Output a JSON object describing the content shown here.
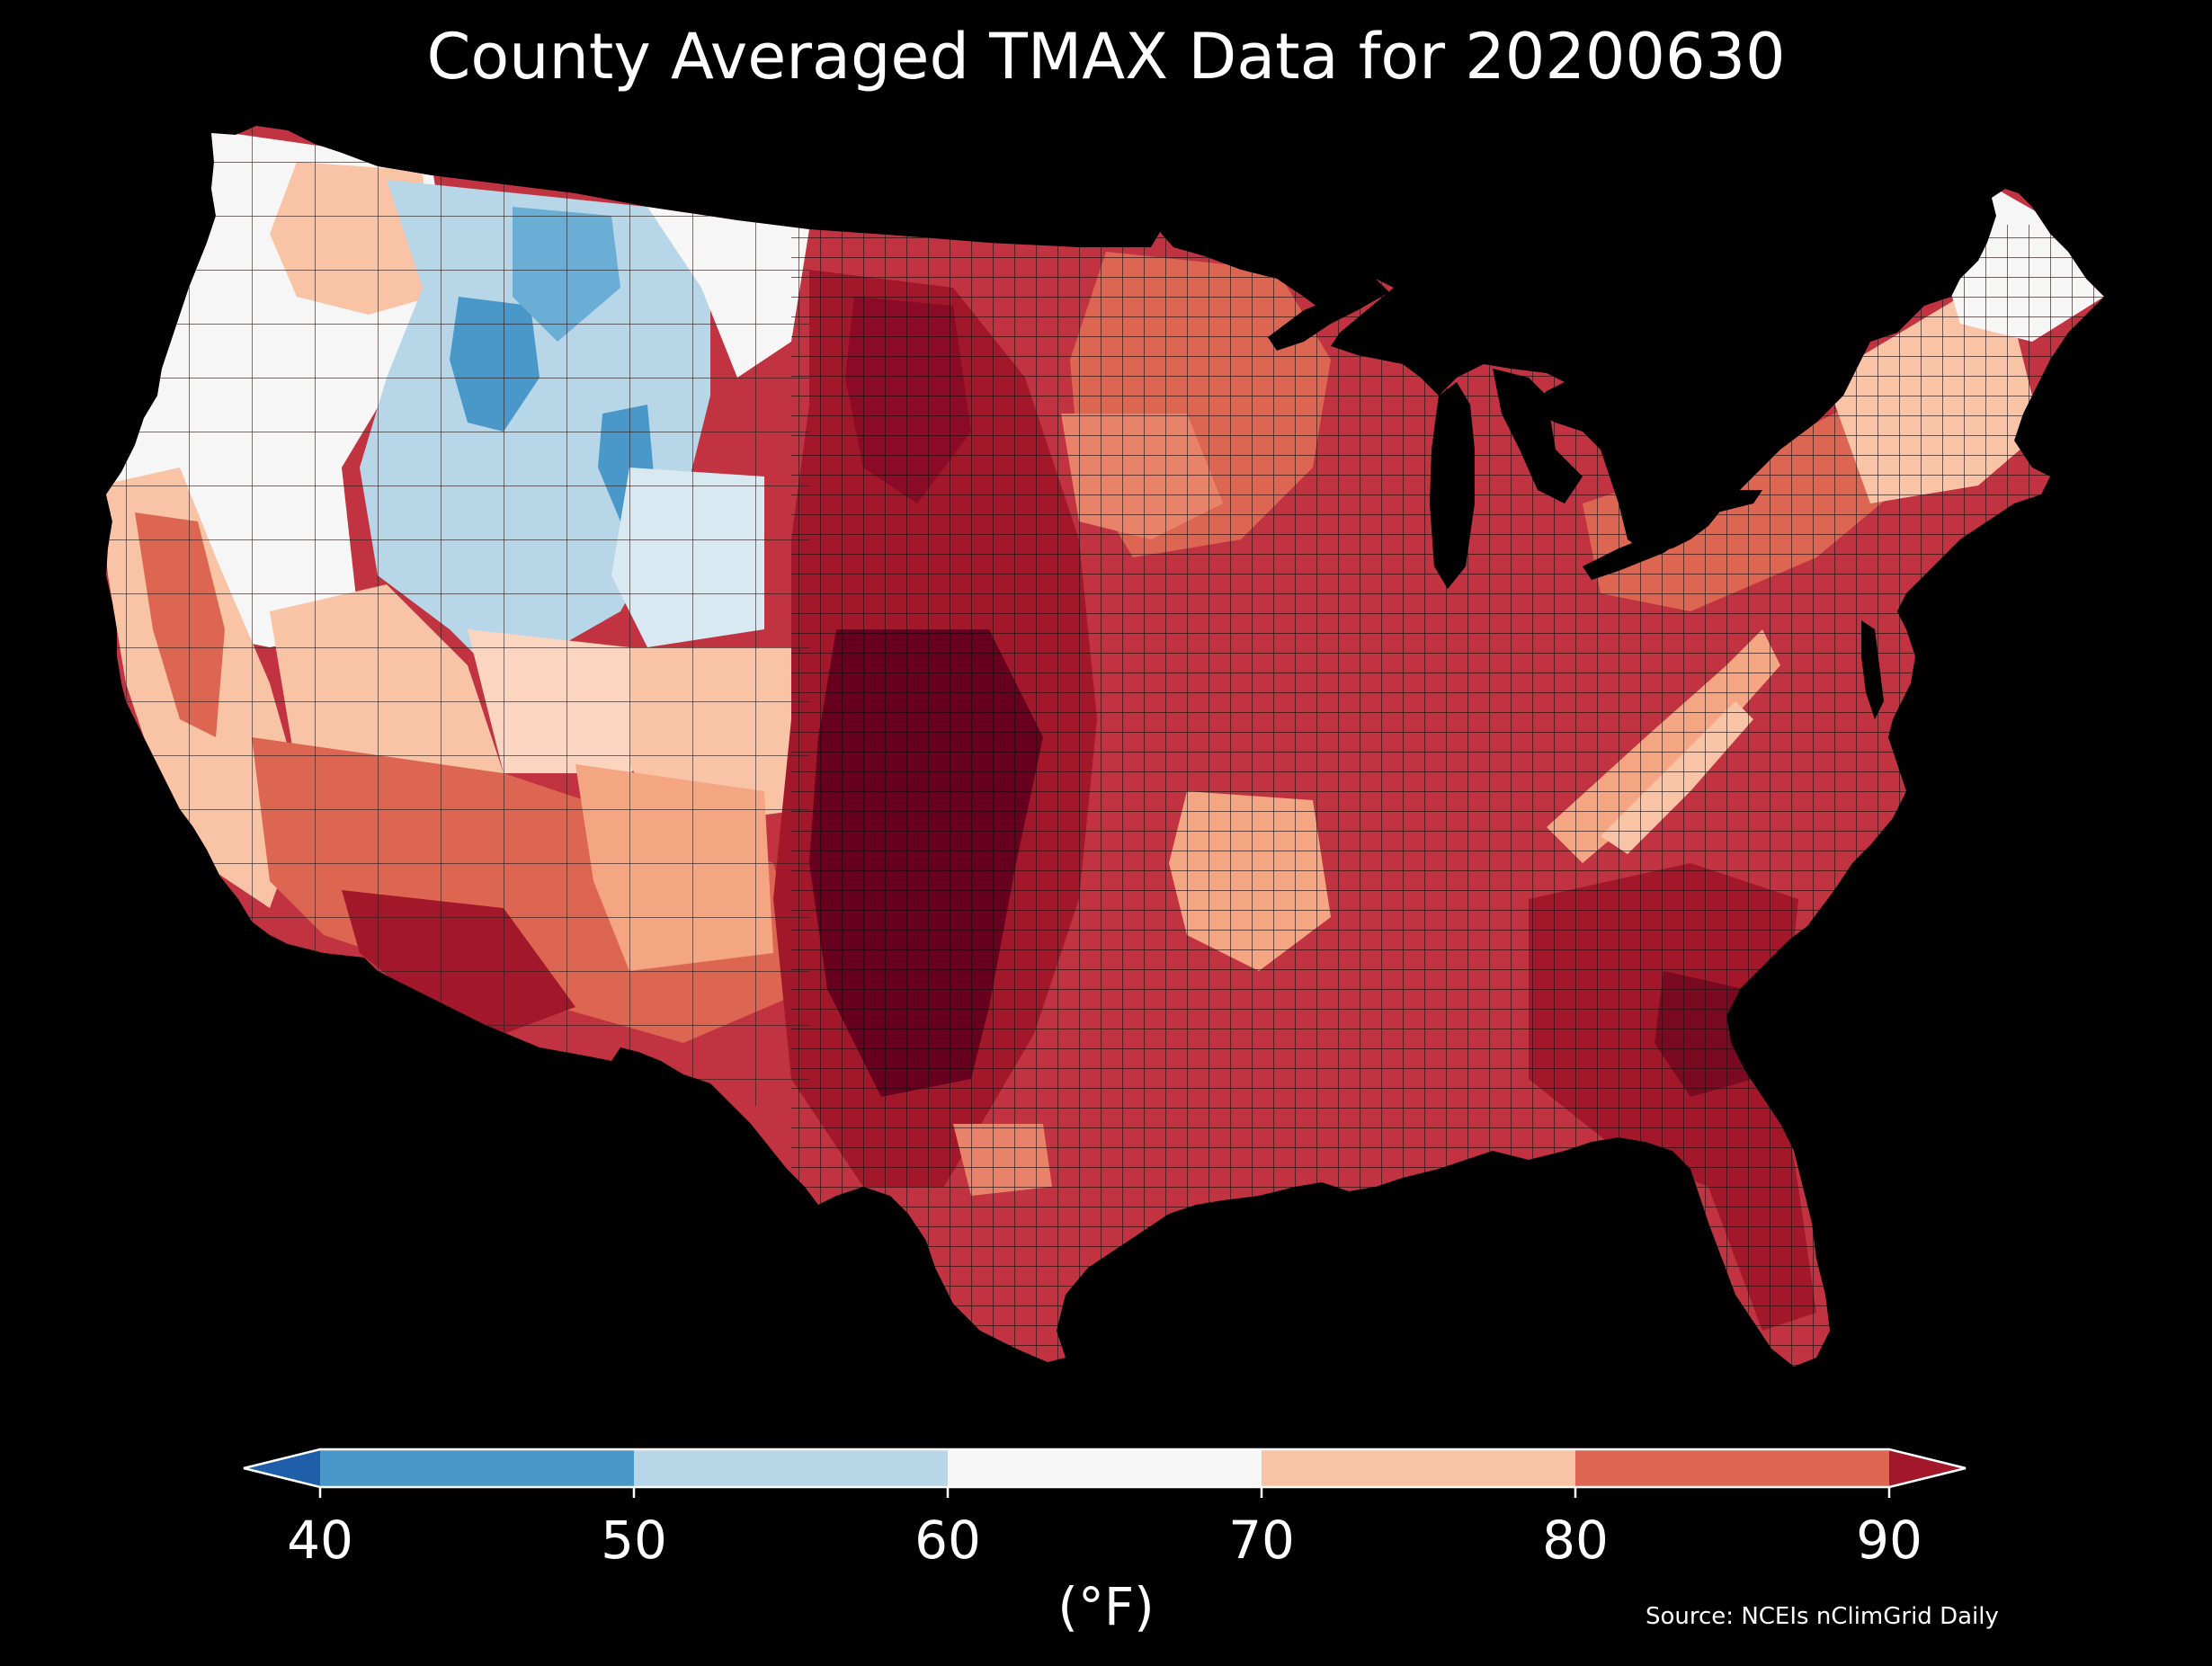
{
  "title": "County Averaged TMAX Data for 20200630",
  "source": "Source: NCEIs nClimGrid Daily",
  "colorbar": {
    "unit_label": "(°F)",
    "ticks": [
      "40",
      "50",
      "60",
      "70",
      "80",
      "90"
    ],
    "bins": [
      {
        "min": null,
        "max": 40,
        "color": "#1f5ea8"
      },
      {
        "min": 40,
        "max": 50,
        "color": "#4a98c9"
      },
      {
        "min": 50,
        "max": 60,
        "color": "#b7d7e8"
      },
      {
        "min": 60,
        "max": 70,
        "color": "#f6f6f6"
      },
      {
        "min": 70,
        "max": 80,
        "color": "#f9c3a6"
      },
      {
        "min": 80,
        "max": 90,
        "color": "#dc6652"
      },
      {
        "min": 90,
        "max": null,
        "color": "#a3172b"
      }
    ],
    "extend": "both"
  },
  "map": {
    "region": "Contiguous United States",
    "background_color": "#000000",
    "county_border_color": "#1a0a0a",
    "palette": {
      "hot_extreme": "#67001f",
      "very_hot": "#a3172b",
      "hot": "#c13340",
      "warm": "#dc6652",
      "mild": "#f9c3a6",
      "neutral": "#f6f6f6",
      "cool": "#b7d7e8",
      "cold": "#4a98c9"
    }
  }
}
